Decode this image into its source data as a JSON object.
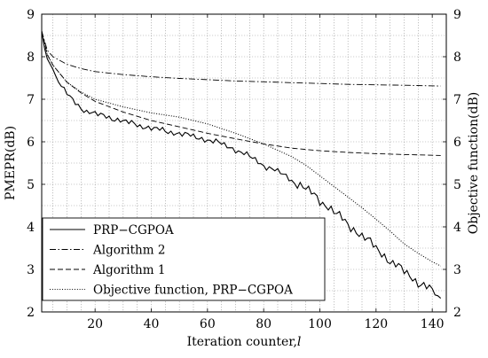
{
  "chart_data": {
    "type": "line",
    "xlabel": "Iteration counter,",
    "xlabel_var": "l",
    "ylabel_left": "PMEPR(dB)",
    "ylabel_right": "Objective function(dB)",
    "xlim": [
      1,
      145
    ],
    "ylim": [
      2,
      9
    ],
    "xticks": [
      20,
      40,
      60,
      80,
      100,
      120,
      140
    ],
    "yticks": [
      2,
      3,
      4,
      5,
      6,
      7,
      8,
      9
    ],
    "grid": true,
    "legend_position": "bottom-left",
    "series": [
      {
        "name": "PRP−CGPOA",
        "style": "solid",
        "x": [
          1,
          2,
          3,
          5,
          7,
          9,
          11,
          14,
          17,
          20,
          25,
          30,
          35,
          40,
          45,
          50,
          55,
          60,
          65,
          70,
          75,
          80,
          85,
          90,
          95,
          100,
          103,
          106,
          110,
          115,
          120,
          125,
          130,
          135,
          140,
          143
        ],
        "y": [
          8.6,
          8.2,
          7.95,
          7.7,
          7.4,
          7.2,
          7.05,
          6.85,
          6.72,
          6.65,
          6.58,
          6.48,
          6.4,
          6.32,
          6.25,
          6.2,
          6.12,
          6.05,
          5.95,
          5.82,
          5.65,
          5.45,
          5.3,
          5.1,
          4.9,
          4.62,
          4.48,
          4.3,
          4.05,
          3.8,
          3.5,
          3.2,
          2.95,
          2.7,
          2.5,
          2.32
        ],
        "noise": 0.09
      },
      {
        "name": "Algorithm 2",
        "style": "dashdot",
        "x": [
          1,
          3,
          5,
          10,
          15,
          20,
          30,
          40,
          50,
          60,
          70,
          80,
          90,
          100,
          110,
          120,
          130,
          143
        ],
        "y": [
          8.6,
          8.15,
          8.0,
          7.82,
          7.72,
          7.65,
          7.58,
          7.53,
          7.49,
          7.46,
          7.43,
          7.41,
          7.39,
          7.37,
          7.35,
          7.34,
          7.33,
          7.31
        ]
      },
      {
        "name": "Algorithm 1",
        "style": "dashed",
        "x": [
          1,
          3,
          5,
          10,
          15,
          20,
          30,
          40,
          50,
          60,
          70,
          80,
          90,
          100,
          110,
          120,
          130,
          143
        ],
        "y": [
          8.6,
          8.05,
          7.8,
          7.4,
          7.15,
          6.95,
          6.7,
          6.5,
          6.35,
          6.2,
          6.07,
          5.95,
          5.85,
          5.79,
          5.75,
          5.72,
          5.7,
          5.68
        ]
      },
      {
        "name": "Objective function, PRP−CGPOA",
        "style": "dotted",
        "x": [
          1,
          3,
          5,
          10,
          15,
          20,
          30,
          40,
          50,
          60,
          70,
          80,
          90,
          95,
          100,
          105,
          110,
          115,
          120,
          125,
          130,
          135,
          140,
          143
        ],
        "y": [
          8.6,
          8.05,
          7.8,
          7.4,
          7.17,
          7.0,
          6.82,
          6.68,
          6.58,
          6.42,
          6.2,
          5.95,
          5.65,
          5.45,
          5.2,
          4.95,
          4.7,
          4.45,
          4.18,
          3.9,
          3.6,
          3.38,
          3.18,
          3.08
        ]
      }
    ]
  }
}
